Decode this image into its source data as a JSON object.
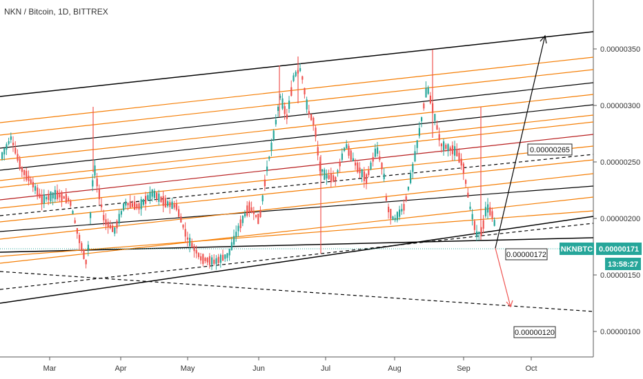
{
  "header": {
    "symbol_title": "NKN / Bitcoin, 1D, BITTREX"
  },
  "chart_data": {
    "type": "candlestick",
    "title": "NKN / Bitcoin, 1D, BITTREX",
    "y_ticks": [
      "0.00000350",
      "0.00000300",
      "0.00000250",
      "0.00000200",
      "0.00000150",
      "0.00000100"
    ],
    "x_ticks": [
      "Mar",
      "Apr",
      "May",
      "Jun",
      "Jul",
      "Aug",
      "Sep",
      "Oct"
    ],
    "annotations": [
      {
        "label": "0.00000265",
        "value": 2.65e-06
      },
      {
        "label": "0.00000172",
        "value": 1.72e-06
      },
      {
        "label": "0.00000120",
        "value": 1.2e-06
      }
    ],
    "current_price": {
      "symbol": "NKNBTC",
      "value": "0.00000171",
      "countdown": "13:58:27"
    },
    "colors": {
      "up": "#26a69a",
      "down": "#ef5350",
      "channel": "#000000",
      "fib": "#f57c00",
      "mid": "#b71c1c",
      "target_up": "#000000",
      "target_down": "#ef5350"
    }
  }
}
